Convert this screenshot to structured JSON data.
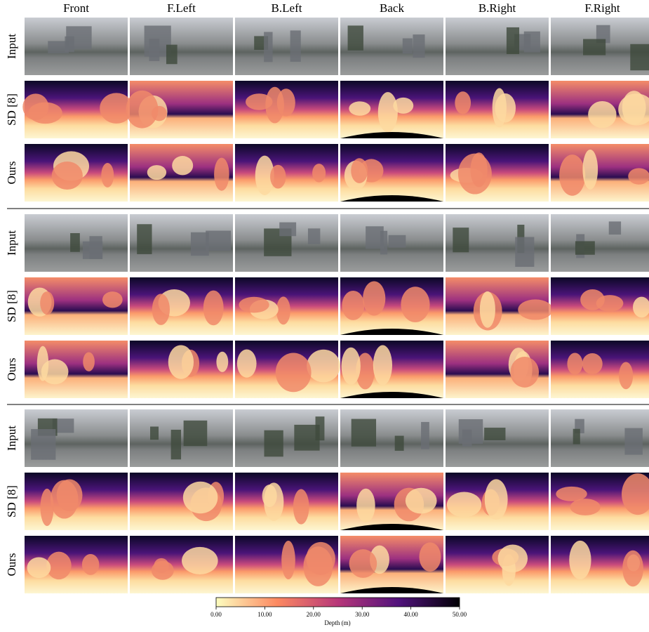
{
  "columns": [
    "Front",
    "F.Left",
    "B.Left",
    "Back",
    "B.Right",
    "F.Right"
  ],
  "groups": [
    {
      "rows": [
        "Input",
        "SD [8]",
        "Ours"
      ]
    },
    {
      "rows": [
        "Input",
        "SD [8]",
        "Ours"
      ]
    },
    {
      "rows": [
        "Input",
        "SD [8]",
        "Ours"
      ]
    }
  ],
  "colorbar": {
    "label": "Depth (m)",
    "lim": [
      0,
      50
    ],
    "ticks": [
      {
        "value": 0,
        "label": "0.00"
      },
      {
        "value": 10,
        "label": "10.00"
      },
      {
        "value": 20,
        "label": "20.00"
      },
      {
        "value": 30,
        "label": "30.00"
      },
      {
        "value": 40,
        "label": "40.00"
      },
      {
        "value": 50,
        "label": "50.00"
      }
    ]
  }
}
